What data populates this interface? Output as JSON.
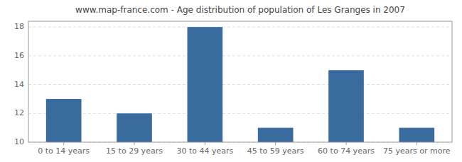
{
  "chart_data": {
    "type": "bar",
    "title": "www.map-france.com - Age distribution of population of Les Granges in 2007",
    "categories": [
      "0 to 14 years",
      "15 to 29 years",
      "30 to 44 years",
      "45 to 59 years",
      "60 to 74 years",
      "75 years or more"
    ],
    "values": [
      13,
      12,
      18,
      11,
      15,
      11
    ],
    "color": "#3a6b9e",
    "ylim": [
      10,
      18.4
    ],
    "yticks": [
      10,
      12,
      14,
      16,
      18
    ],
    "grid": true
  }
}
